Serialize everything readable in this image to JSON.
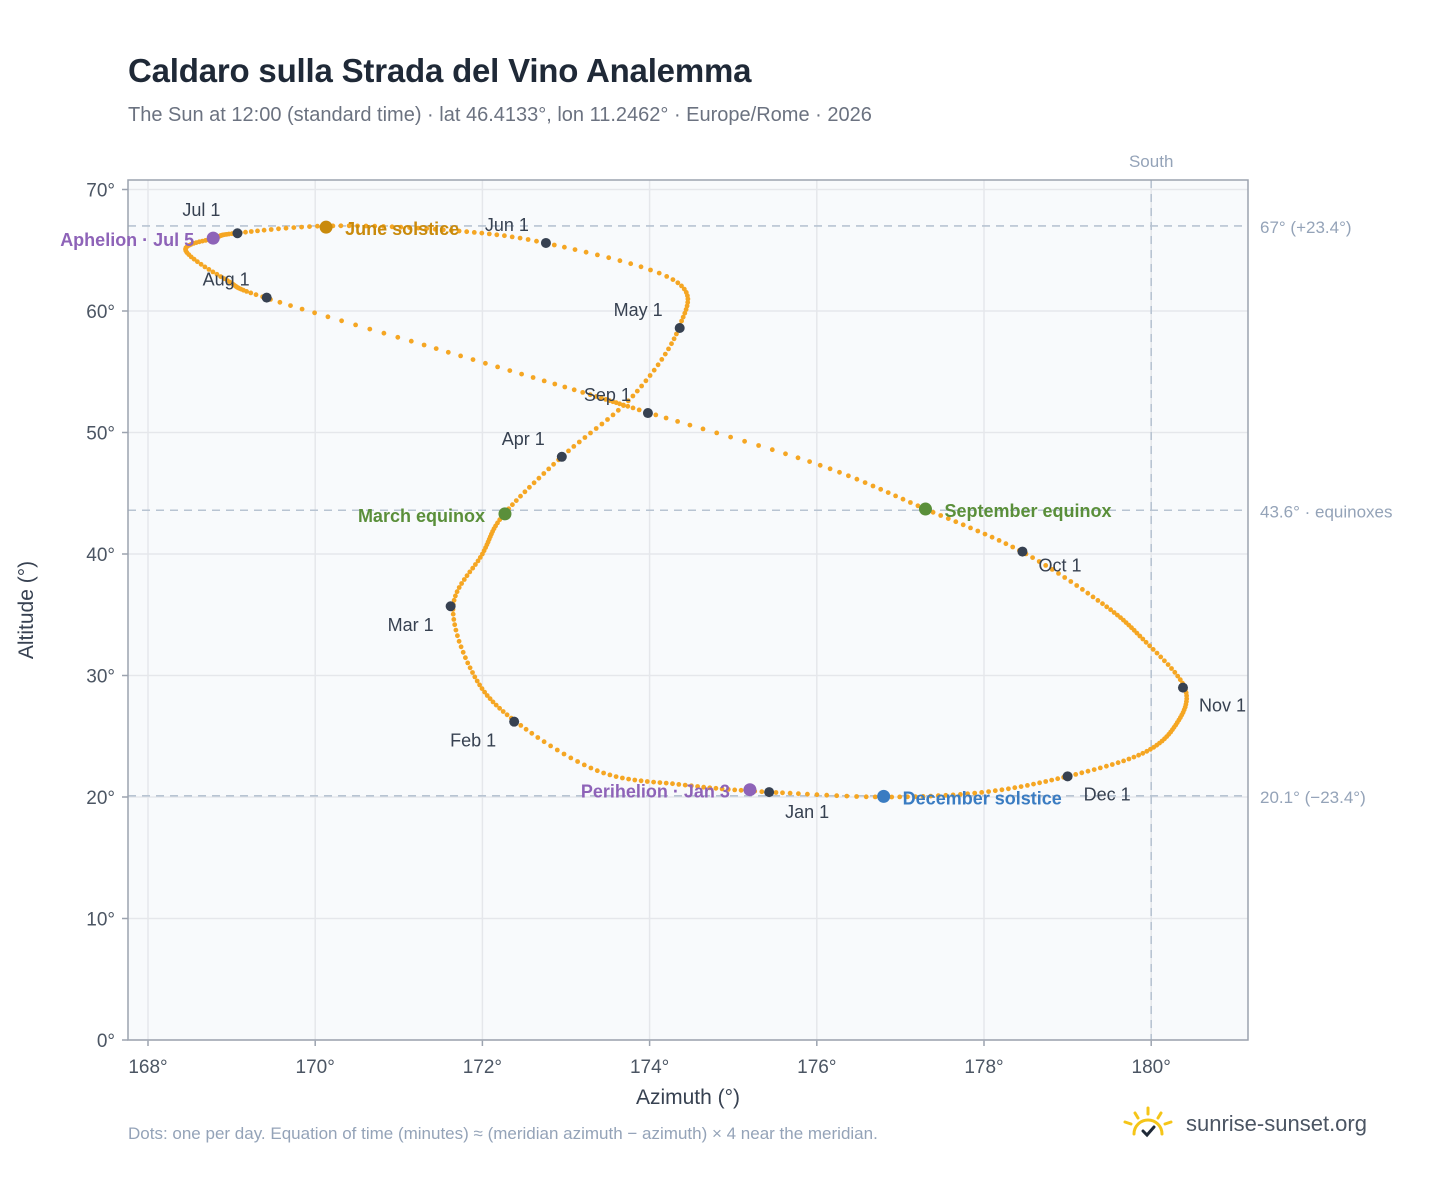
{
  "title": "Caldaro sulla Strada del Vino Analemma",
  "subtitle": "The Sun at 12:00 (standard time) · lat 46.4133°, lon 11.2462° · Europe/Rome · 2026",
  "footnote": "Dots: one per day. Equation of time (minutes) ≈ (meridian azimuth − azimuth) × 4 near the meridian.",
  "brand": {
    "name": "sunrise-sunset.org",
    "icon": "sun-logo-icon"
  },
  "colors": {
    "curve": "#f5a623",
    "month_dot": "#374151",
    "aphelion": "#8e63b8",
    "perihelion": "#8e63b8",
    "june": "#c98a0c",
    "equinox": "#5a8f3a",
    "december": "#3a7cc2",
    "grid": "#e5e7eb",
    "refline": "#b8c4d2",
    "plot_bg": "#f8fafc"
  },
  "chart_data": {
    "type": "scatter",
    "xlabel": "Azimuth (°)",
    "ylabel": "Altitude (°)",
    "xlim": [
      167.8,
      181.1
    ],
    "ylim": [
      0,
      70.5
    ],
    "xticks": [
      168,
      170,
      172,
      174,
      176,
      178,
      180
    ],
    "xtick_labels": [
      "168°",
      "170°",
      "172°",
      "174°",
      "176°",
      "178°",
      "180°"
    ],
    "yticks": [
      0,
      10,
      20,
      30,
      40,
      50,
      60,
      70
    ],
    "ytick_labels": [
      "0°",
      "10°",
      "20°",
      "30°",
      "40°",
      "50°",
      "60°",
      "70°"
    ],
    "grid": true,
    "path": [
      [
        175.43,
        20.4
      ],
      [
        174.4,
        21.0
      ],
      [
        173.4,
        22.1
      ],
      [
        172.4,
        26.2
      ],
      [
        171.9,
        30.0
      ],
      [
        171.65,
        35.7
      ],
      [
        172.0,
        40.0
      ],
      [
        172.25,
        43.2
      ],
      [
        172.95,
        48.0
      ],
      [
        173.8,
        53.0
      ],
      [
        174.35,
        58.6
      ],
      [
        174.3,
        62.5
      ],
      [
        172.75,
        65.6
      ],
      [
        171.5,
        66.7
      ],
      [
        170.15,
        67.0
      ],
      [
        169.05,
        66.4
      ],
      [
        168.8,
        66.0
      ],
      [
        168.45,
        65.0
      ],
      [
        168.95,
        62.5
      ],
      [
        169.4,
        61.1
      ],
      [
        171.4,
        57.0
      ],
      [
        173.2,
        53.3
      ],
      [
        174.0,
        51.6
      ],
      [
        176.0,
        47.4
      ],
      [
        177.3,
        43.7
      ],
      [
        178.45,
        40.2
      ],
      [
        179.4,
        36.0
      ],
      [
        179.9,
        33.0
      ],
      [
        180.4,
        29.0
      ],
      [
        180.3,
        26.0
      ],
      [
        179.9,
        23.6
      ],
      [
        179.0,
        21.7
      ],
      [
        178.0,
        20.4
      ],
      [
        176.8,
        20.0
      ],
      [
        175.43,
        20.4
      ]
    ],
    "month_points": [
      {
        "label": "Jan 1",
        "az": 175.43,
        "alt": 20.4,
        "anchor": "start",
        "dx": 16,
        "dy": 26
      },
      {
        "label": "Feb 1",
        "az": 172.38,
        "alt": 26.2,
        "anchor": "end",
        "dx": -18,
        "dy": 25
      },
      {
        "label": "Mar 1",
        "az": 171.62,
        "alt": 35.7,
        "anchor": "end",
        "dx": -17,
        "dy": 25
      },
      {
        "label": "Apr 1",
        "az": 172.95,
        "alt": 48.0,
        "anchor": "end",
        "dx": -17,
        "dy": -12
      },
      {
        "label": "May 1",
        "az": 174.36,
        "alt": 58.6,
        "anchor": "end",
        "dx": -17,
        "dy": -12
      },
      {
        "label": "Jun 1",
        "az": 172.76,
        "alt": 65.6,
        "anchor": "end",
        "dx": -17,
        "dy": -12
      },
      {
        "label": "Jul 1",
        "az": 169.07,
        "alt": 66.4,
        "anchor": "end",
        "dx": -17,
        "dy": -17
      },
      {
        "label": "Aug 1",
        "az": 169.42,
        "alt": 61.1,
        "anchor": "end",
        "dx": -17,
        "dy": -12
      },
      {
        "label": "Sep 1",
        "az": 173.98,
        "alt": 51.6,
        "anchor": "end",
        "dx": -17,
        "dy": -12
      },
      {
        "label": "Oct 1",
        "az": 178.46,
        "alt": 40.2,
        "anchor": "start",
        "dx": 16,
        "dy": 20
      },
      {
        "label": "Nov 1",
        "az": 180.38,
        "alt": 29.0,
        "anchor": "start",
        "dx": 16,
        "dy": 24
      },
      {
        "label": "Dec 1",
        "az": 179.0,
        "alt": 21.7,
        "anchor": "start",
        "dx": 16,
        "dy": 24
      }
    ],
    "events": [
      {
        "label": "June solstice",
        "az": 170.13,
        "alt": 66.9,
        "color": "#c98a0c",
        "anchor": "start",
        "dx": 19,
        "dy": 8
      },
      {
        "label": "March equinox",
        "az": 172.27,
        "alt": 43.3,
        "color": "#5a8f3a",
        "anchor": "end",
        "dx": -20,
        "dy": 8
      },
      {
        "label": "September equinox",
        "az": 177.3,
        "alt": 43.7,
        "color": "#5a8f3a",
        "anchor": "start",
        "dx": 19,
        "dy": 8
      },
      {
        "label": "December solstice",
        "az": 176.8,
        "alt": 20.05,
        "color": "#3a7cc2",
        "anchor": "start",
        "dx": 19,
        "dy": 8
      },
      {
        "label": "Aphelion · Jul 5",
        "az": 168.78,
        "alt": 66.0,
        "color": "#8e63b8",
        "anchor": "end",
        "dx": -19,
        "dy": 8
      },
      {
        "label": "Perihelion · Jan 3",
        "az": 175.2,
        "alt": 20.6,
        "color": "#8e63b8",
        "anchor": "end",
        "dx": -20,
        "dy": 8
      }
    ],
    "ref_lines": [
      {
        "alt": 67.0,
        "label": "67° (+23.4°)"
      },
      {
        "alt": 43.6,
        "label": "43.6° · equinoxes"
      },
      {
        "alt": 20.1,
        "label": "20.1° (−23.4°)"
      }
    ],
    "meridian": {
      "az": 180,
      "label": "South"
    }
  }
}
